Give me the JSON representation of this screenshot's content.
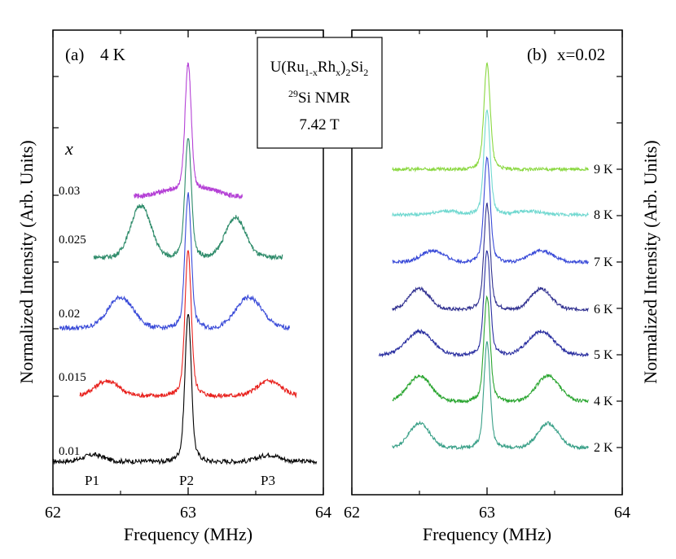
{
  "chart_data": [
    {
      "type": "line",
      "panel_label": "(a)",
      "condition": "4 K",
      "xlabel": "Frequency (MHz)",
      "ylabel": "Normalized Intensity (Arb. Units)",
      "xlim": [
        62,
        64
      ],
      "x_ticks": [
        "62",
        "63",
        "64"
      ],
      "legend_title": "x",
      "peak_labels": [
        "P1",
        "P2",
        "P3"
      ],
      "series": [
        {
          "name": "0.01",
          "color": "#000000",
          "x_range": [
            62.0,
            63.95
          ],
          "peak_positions": [
            62.3,
            63.0,
            63.6
          ],
          "peak_heights": [
            0.05,
            1.0,
            0.05
          ]
        },
        {
          "name": "0.015",
          "color": "#e8201c",
          "x_range": [
            62.2,
            63.8
          ],
          "peak_positions": [
            62.4,
            63.0,
            63.6
          ],
          "peak_heights": [
            0.11,
            0.97,
            0.11
          ]
        },
        {
          "name": "0.02",
          "color": "#3a4bd8",
          "x_range": [
            62.05,
            63.75
          ],
          "peak_positions": [
            62.5,
            63.0,
            63.45
          ],
          "peak_heights": [
            0.23,
            0.9,
            0.23
          ]
        },
        {
          "name": "0.025",
          "color": "#2e8b6a",
          "x_range": [
            62.3,
            63.7
          ],
          "peak_positions": [
            62.65,
            63.0,
            63.35
          ],
          "peak_heights": [
            0.39,
            0.81,
            0.3
          ]
        },
        {
          "name": "0.03",
          "color": "#b542d6",
          "x_range": [
            62.6,
            63.4
          ],
          "peak_positions": [
            62.85,
            63.0,
            63.15
          ],
          "peak_heights": [
            0.04,
            0.88,
            0.05
          ]
        }
      ]
    },
    {
      "type": "line",
      "panel_label": "(b)",
      "condition": "x=0.02",
      "xlabel": "Frequency (MHz)",
      "ylabel": "Normalized Intensity (Arb. Units)",
      "xlim": [
        62,
        64
      ],
      "x_ticks": [
        "62",
        "63",
        "64"
      ],
      "series": [
        {
          "name": "2 K",
          "color": "#3aa088",
          "x_range": [
            62.3,
            63.75
          ],
          "peak_positions": [
            62.5,
            63.0,
            63.45
          ],
          "peak_heights": [
            0.26,
            1.0,
            0.26
          ]
        },
        {
          "name": "4 K",
          "color": "#2aa530",
          "x_range": [
            62.3,
            63.75
          ],
          "peak_positions": [
            62.5,
            63.0,
            63.45
          ],
          "peak_heights": [
            0.27,
            1.0,
            0.27
          ]
        },
        {
          "name": "5 K",
          "color": "#2a2fa0",
          "x_range": [
            62.2,
            63.75
          ],
          "peak_positions": [
            62.5,
            63.0,
            63.4
          ],
          "peak_heights": [
            0.25,
            1.0,
            0.25
          ]
        },
        {
          "name": "6 K",
          "color": "#303090",
          "x_range": [
            62.3,
            63.75
          ],
          "peak_positions": [
            62.5,
            63.0,
            63.4
          ],
          "peak_heights": [
            0.22,
            1.0,
            0.22
          ]
        },
        {
          "name": "7 K",
          "color": "#3a4bd8",
          "x_range": [
            62.3,
            63.75
          ],
          "peak_positions": [
            62.6,
            63.0,
            63.4
          ],
          "peak_heights": [
            0.12,
            1.0,
            0.12
          ]
        },
        {
          "name": "8 K",
          "color": "#70d8d0",
          "x_range": [
            62.3,
            63.75
          ],
          "peak_positions": [
            62.7,
            63.0,
            63.3
          ],
          "peak_heights": [
            0.04,
            1.0,
            0.04
          ]
        },
        {
          "name": "9 K",
          "color": "#8ad840",
          "x_range": [
            62.3,
            63.75
          ],
          "peak_positions": [
            63.0
          ],
          "peak_heights": [
            1.0
          ]
        }
      ]
    }
  ],
  "annotation_box": {
    "line1_main": "U(Ru",
    "line1_sub1": "1-x",
    "line1_mid": "Rh",
    "line1_sub2": "x",
    "line1_close": ")",
    "line1_sub3": "2",
    "line1_si": "Si",
    "line1_sub4": "2",
    "line2_sup": "29",
    "line2_text": "Si NMR",
    "line3": "7.42 T"
  }
}
